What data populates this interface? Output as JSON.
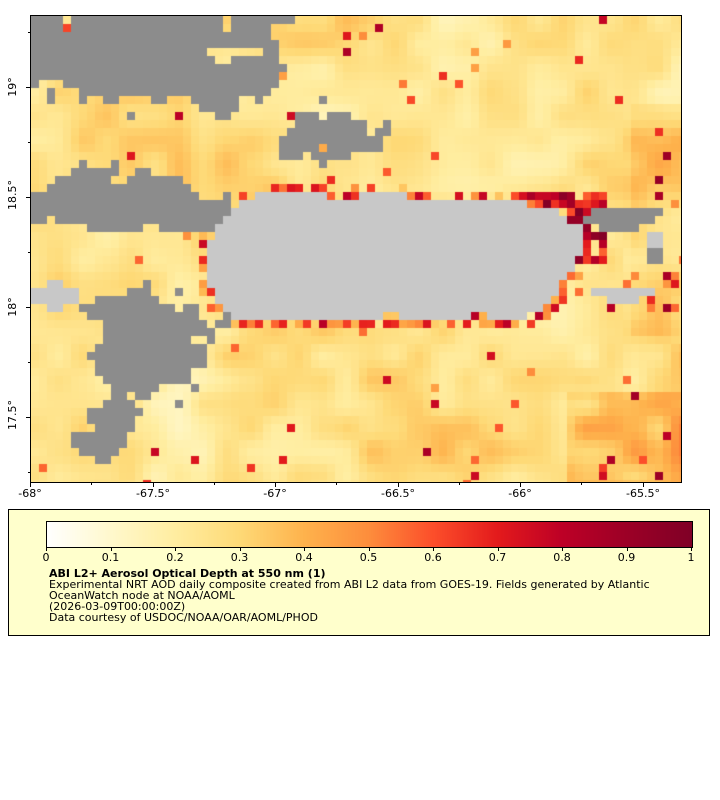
{
  "map": {
    "lat_ticks": [
      "19°",
      "18.5°",
      "18°",
      "17.5°"
    ],
    "lon_ticks": [
      "-68°",
      "-67.5°",
      "-67°",
      "-66.5°",
      "-66°",
      "-65.5°"
    ]
  },
  "legend": {
    "title": "ABI L2+ Aerosol Optical Depth at 550 nm (1)",
    "lines": [
      "Experimental NRT AOD daily composite created from ABI L2 data from GOES-19. Fields generated by Atlantic",
      "OceanWatch node at NOAA/AOML",
      "(2026-03-09T00:00:00Z)",
      "Data courtesy of USDOC/NOAA/OAR/AOML/PHOD"
    ],
    "ticks": [
      "0",
      "0.1",
      "0.2",
      "0.3",
      "0.4",
      "0.5",
      "0.6",
      "0.7",
      "0.8",
      "0.9",
      "1"
    ],
    "background": "#FFFFCC"
  },
  "colors": {
    "cloud_gray": "#8C8C8C",
    "land_gray": "#C8C8C8",
    "border": "#000000"
  },
  "colormap": [
    {
      "v": 0.0,
      "c": "#FFFFFF"
    },
    {
      "v": 0.1,
      "c": "#FFF8CC"
    },
    {
      "v": 0.2,
      "c": "#FFEDA0"
    },
    {
      "v": 0.3,
      "c": "#FED976"
    },
    {
      "v": 0.4,
      "c": "#FEB24C"
    },
    {
      "v": 0.5,
      "c": "#FD8D3C"
    },
    {
      "v": 0.6,
      "c": "#FC4E2A"
    },
    {
      "v": 0.7,
      "c": "#E31A1C"
    },
    {
      "v": 0.8,
      "c": "#BD0026"
    },
    {
      "v": 0.9,
      "c": "#9C0026"
    },
    {
      "v": 1.0,
      "c": "#800026"
    }
  ]
}
